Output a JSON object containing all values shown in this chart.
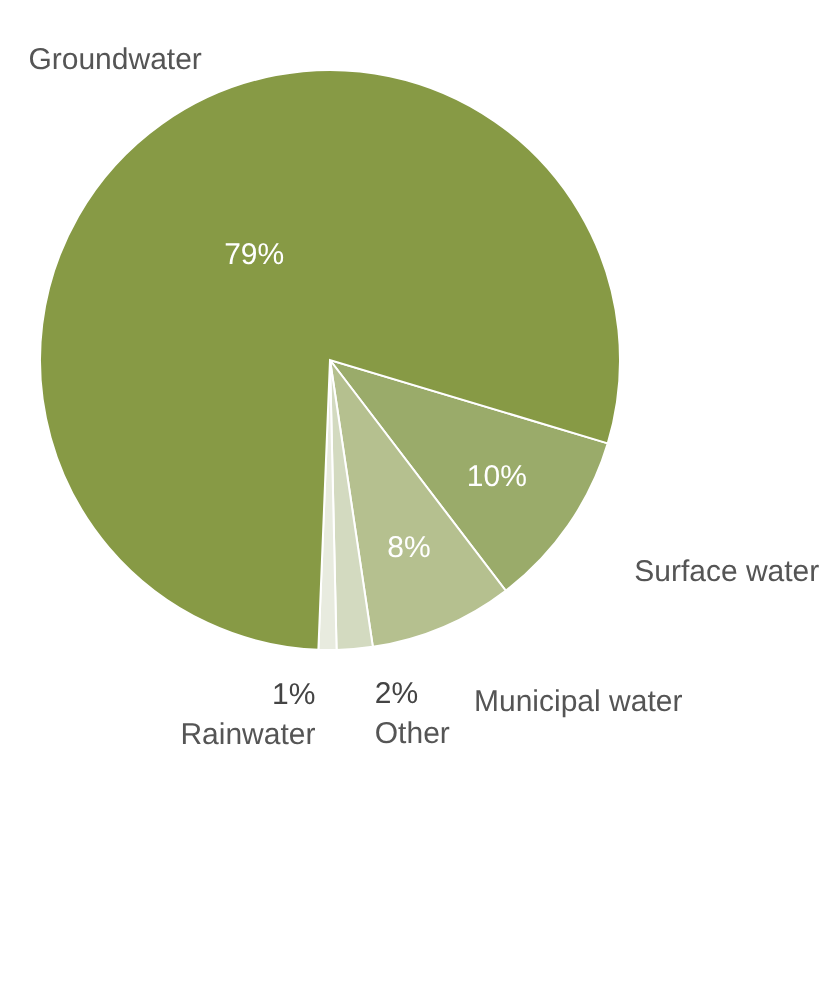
{
  "chart_data": {
    "type": "pie",
    "categories": [
      "Surface water",
      "Municipal water",
      "Other",
      "Rainwater",
      "Groundwater"
    ],
    "values": [
      10,
      8,
      2,
      1,
      79
    ],
    "value_labels": [
      "10%",
      "8%",
      "2%",
      "1%",
      "79%"
    ],
    "colors": [
      "#9aab6a",
      "#b5c08f",
      "#d3dac0",
      "#e8ebdf",
      "#879a45"
    ]
  }
}
